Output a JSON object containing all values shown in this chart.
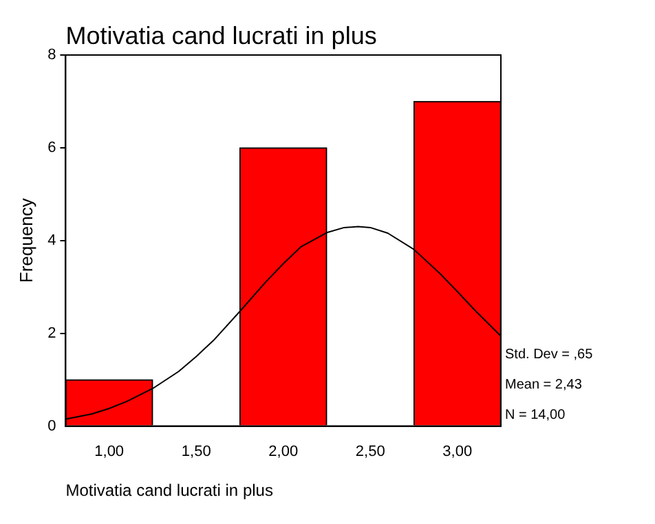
{
  "chart_data": {
    "type": "histogram",
    "title": "Motivatia cand lucrati in plus",
    "xlabel": "Motivatia cand lucrati in plus",
    "ylabel": "Frequency",
    "bins": [
      0.75,
      1.25,
      1.75,
      2.25,
      2.75,
      3.25
    ],
    "values": [
      1,
      0,
      6,
      0,
      7
    ],
    "color": "#ff0000",
    "series": [
      {
        "type": "line",
        "color": "#000000",
        "x": [
          0.75,
          0.9,
          1.0,
          1.1,
          1.25,
          1.4,
          1.5,
          1.6,
          1.75,
          1.9,
          2.0,
          2.1,
          2.25,
          2.35,
          2.43,
          2.5,
          2.6,
          2.75,
          2.9,
          3.0,
          3.1,
          3.25
        ],
        "values": [
          0.15,
          0.26,
          0.38,
          0.53,
          0.81,
          1.18,
          1.5,
          1.85,
          2.47,
          3.11,
          3.5,
          3.86,
          4.17,
          4.28,
          4.3,
          4.28,
          4.16,
          3.81,
          3.29,
          2.9,
          2.5,
          1.94
        ]
      }
    ],
    "xlim": [
      0.75,
      3.25
    ],
    "ylim": [
      0,
      8
    ],
    "xticks": [
      {
        "value": 1,
        "label": "1,00"
      },
      {
        "value": 1.5,
        "label": "1,50"
      },
      {
        "value": 2,
        "label": "2,00"
      },
      {
        "value": 2.5,
        "label": "2,50"
      },
      {
        "value": 3,
        "label": "3,00"
      }
    ],
    "yticks": [
      0,
      2,
      4,
      6,
      8
    ],
    "grid": false,
    "legend": false,
    "marker": "none",
    "line_style": "solid",
    "annotations": [
      "Std. Dev = ,65",
      "Mean = 2,43",
      "N = 14,00"
    ]
  }
}
